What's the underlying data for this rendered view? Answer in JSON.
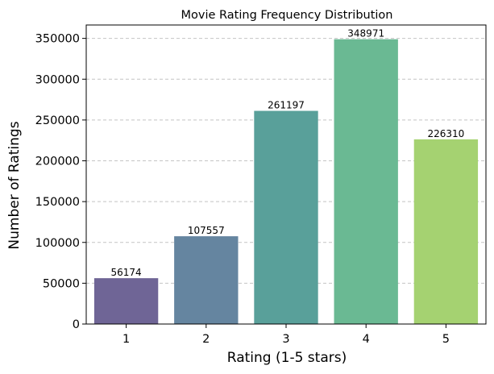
{
  "chart_data": {
    "type": "bar",
    "title": "Movie Rating Frequency Distribution",
    "xlabel": "Rating (1-5 stars)",
    "ylabel": "Number of Ratings",
    "categories": [
      "1",
      "2",
      "3",
      "4",
      "5"
    ],
    "values": [
      56174,
      107557,
      261197,
      348971,
      226310
    ],
    "data_labels": [
      "56174",
      "107557",
      "261197",
      "348971",
      "226310"
    ],
    "yticks": [
      0,
      50000,
      100000,
      150000,
      200000,
      250000,
      300000,
      350000
    ],
    "ytick_labels": [
      "0",
      "50000",
      "100000",
      "150000",
      "200000",
      "250000",
      "300000",
      "350000"
    ],
    "ylim": [
      0,
      366420
    ],
    "grid": "y-dashed",
    "colors": [
      "#6f6596",
      "#6585a0",
      "#59a09a",
      "#6ab993",
      "#a5d271"
    ]
  }
}
